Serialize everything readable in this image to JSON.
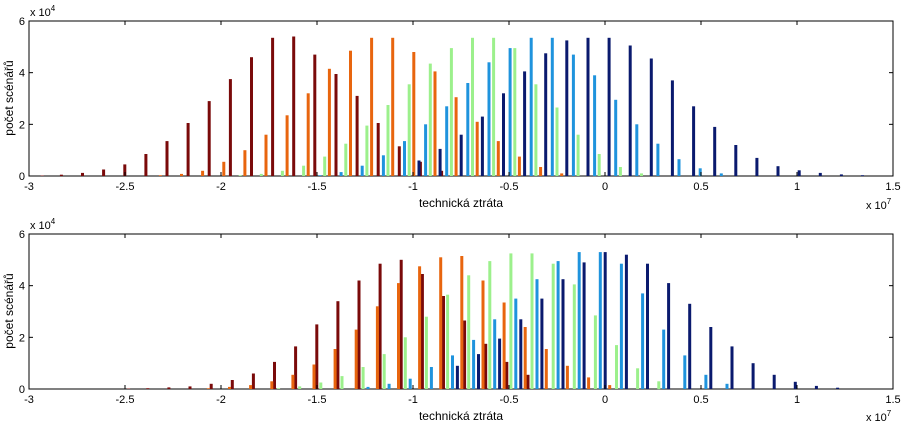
{
  "chart_data": [
    {
      "type": "bar",
      "xlabel": "technická ztráta",
      "ylabel": "počet scénářů",
      "x_exponent_label": "x 10",
      "x_exponent": "7",
      "y_exponent_label": "x 10",
      "y_exponent": "4",
      "xlim": [
        -3.0,
        1.5
      ],
      "ylim": [
        0,
        6
      ],
      "xticks": [
        "-3",
        "-2.5",
        "-2",
        "-1.5",
        "-1",
        "-0.5",
        "0",
        "0.5",
        "1",
        "1.5"
      ],
      "yticks": [
        "0",
        "2",
        "4",
        "6"
      ],
      "grid": false,
      "series": [
        {
          "color": "#7a0a0a",
          "x": [
            -2.9,
            -2.8,
            -2.69,
            -2.58,
            -2.47,
            -2.36,
            -2.25,
            -2.14,
            -2.03,
            -1.92,
            -1.81,
            -1.7,
            -1.59,
            -1.48,
            -1.37,
            -1.26,
            -1.15,
            -1.04,
            -0.93,
            -0.82
          ],
          "values": [
            0.02,
            0.05,
            0.12,
            0.25,
            0.45,
            0.85,
            1.35,
            2.05,
            2.9,
            3.75,
            4.6,
            5.35,
            5.4,
            4.7,
            3.95,
            3.1,
            2.05,
            1.15,
            0.55,
            0.2
          ]
        },
        {
          "color": "#e8650e",
          "x": [
            -2.3,
            -2.19,
            -2.08,
            -1.97,
            -1.86,
            -1.75,
            -1.64,
            -1.53,
            -1.42,
            -1.31,
            -1.2,
            -1.09,
            -0.98,
            -0.87,
            -0.76,
            -0.65,
            -0.54,
            -0.43,
            -0.32,
            -0.21
          ],
          "values": [
            0.03,
            0.08,
            0.2,
            0.55,
            1.0,
            1.6,
            2.35,
            3.2,
            4.15,
            4.85,
            5.35,
            5.35,
            4.8,
            4.05,
            3.05,
            2.1,
            1.35,
            0.75,
            0.35,
            0.1
          ]
        },
        {
          "color": "#9cf08c",
          "x": [
            -1.9,
            -1.79,
            -1.68,
            -1.57,
            -1.46,
            -1.35,
            -1.24,
            -1.13,
            -1.02,
            -0.91,
            -0.8,
            -0.69,
            -0.58,
            -0.47,
            -0.36,
            -0.25,
            -0.14,
            -0.03,
            0.08,
            0.19
          ],
          "values": [
            0.03,
            0.08,
            0.2,
            0.4,
            0.75,
            1.25,
            1.95,
            2.75,
            3.55,
            4.35,
            4.95,
            5.35,
            5.35,
            4.95,
            3.55,
            2.65,
            1.6,
            0.85,
            0.35,
            0.1
          ]
        },
        {
          "color": "#1f93dd",
          "x": [
            -1.5,
            -1.39,
            -1.28,
            -1.17,
            -1.06,
            -0.95,
            -0.84,
            -0.73,
            -0.62,
            -0.51,
            -0.4,
            -0.29,
            -0.18,
            -0.07,
            0.04,
            0.15,
            0.26,
            0.37,
            0.48,
            0.59
          ],
          "values": [
            0.03,
            0.15,
            0.4,
            0.8,
            1.35,
            2.0,
            2.7,
            3.6,
            4.4,
            4.95,
            5.35,
            5.35,
            4.7,
            3.9,
            2.95,
            2.0,
            1.25,
            0.65,
            0.3,
            0.1
          ]
        },
        {
          "color": "#0a1a6e",
          "x": [
            -1.0,
            -0.89,
            -0.78,
            -0.67,
            -0.56,
            -0.45,
            -0.34,
            -0.23,
            -0.12,
            -0.01,
            0.1,
            0.21,
            0.32,
            0.43,
            0.54,
            0.65,
            0.76,
            0.87,
            0.98,
            1.09,
            1.2,
            1.31
          ],
          "values": [
            0.6,
            1.05,
            1.6,
            2.3,
            3.2,
            4.05,
            4.75,
            5.25,
            5.35,
            5.35,
            5.05,
            4.55,
            3.7,
            2.7,
            1.9,
            1.2,
            0.7,
            0.38,
            0.22,
            0.12,
            0.06,
            0.03
          ]
        }
      ]
    },
    {
      "type": "bar",
      "xlabel": "technická ztráta",
      "ylabel": "počet scénářů",
      "x_exponent_label": "x 10",
      "x_exponent": "7",
      "y_exponent_label": "x 10",
      "y_exponent": "4",
      "xlim": [
        -3.0,
        1.5
      ],
      "ylim": [
        0,
        6
      ],
      "xticks": [
        "-3",
        "-2.5",
        "-2",
        "-1.5",
        "-1",
        "-0.5",
        "0",
        "0.5",
        "1",
        "1.5"
      ],
      "yticks": [
        "0",
        "2",
        "4",
        "6"
      ],
      "grid": false,
      "series": [
        {
          "color": "#7a0a0a",
          "x": [
            -2.45,
            -2.35,
            -2.24,
            -2.13,
            -2.02,
            -1.91,
            -1.8,
            -1.69,
            -1.58,
            -1.47,
            -1.36,
            -1.25,
            -1.14,
            -1.03,
            -0.92,
            -0.81,
            -0.7,
            -0.59,
            -0.48,
            -0.37
          ],
          "values": [
            0.02,
            0.03,
            0.06,
            0.1,
            0.2,
            0.35,
            0.6,
            1.05,
            1.65,
            2.5,
            3.4,
            4.2,
            4.85,
            5.0,
            4.45,
            3.6,
            2.65,
            1.75,
            1.05,
            0.55
          ]
        },
        {
          "color": "#e8650e",
          "x": [
            -2.05,
            -1.94,
            -1.83,
            -1.72,
            -1.61,
            -1.5,
            -1.39,
            -1.28,
            -1.17,
            -1.06,
            -0.95,
            -0.84,
            -0.73,
            -0.62,
            -0.51,
            -0.4,
            -0.29,
            -0.18,
            -0.07,
            0.04
          ],
          "values": [
            0.03,
            0.08,
            0.15,
            0.3,
            0.55,
            0.95,
            1.55,
            2.3,
            3.2,
            4.1,
            4.75,
            5.1,
            5.15,
            4.2,
            3.35,
            2.4,
            1.55,
            0.9,
            0.45,
            0.15
          ]
        },
        {
          "color": "#9cf08c",
          "x": [
            -1.7,
            -1.59,
            -1.48,
            -1.37,
            -1.26,
            -1.15,
            -1.04,
            -0.93,
            -0.82,
            -0.71,
            -0.6,
            -0.49,
            -0.38,
            -0.27,
            -0.16,
            -0.05,
            0.06,
            0.17,
            0.28
          ],
          "values": [
            0.03,
            0.1,
            0.25,
            0.5,
            0.85,
            1.35,
            2.0,
            2.8,
            3.65,
            4.4,
            4.95,
            5.25,
            5.25,
            4.85,
            4.05,
            2.85,
            1.7,
            0.8,
            0.3
          ]
        },
        {
          "color": "#1f93dd",
          "x": [
            -1.25,
            -1.14,
            -1.03,
            -0.92,
            -0.81,
            -0.7,
            -0.59,
            -0.48,
            -0.37,
            -0.26,
            -0.15,
            -0.04,
            0.07,
            0.18,
            0.29,
            0.4,
            0.51,
            0.62
          ],
          "values": [
            0.08,
            0.2,
            0.4,
            0.85,
            1.3,
            1.9,
            2.7,
            3.5,
            4.25,
            4.95,
            5.3,
            5.3,
            4.85,
            3.7,
            2.3,
            1.3,
            0.55,
            0.2
          ]
        },
        {
          "color": "#0a1a6e",
          "x": [
            -0.8,
            -0.69,
            -0.58,
            -0.47,
            -0.36,
            -0.25,
            -0.14,
            -0.03,
            0.08,
            0.19,
            0.3,
            0.41,
            0.52,
            0.63,
            0.74,
            0.85,
            0.96,
            1.07,
            1.18
          ],
          "values": [
            0.9,
            1.35,
            1.95,
            2.7,
            3.5,
            4.25,
            4.9,
            5.3,
            5.2,
            4.85,
            4.1,
            3.3,
            2.4,
            1.65,
            1.0,
            0.55,
            0.28,
            0.12,
            0.05
          ]
        }
      ]
    }
  ]
}
